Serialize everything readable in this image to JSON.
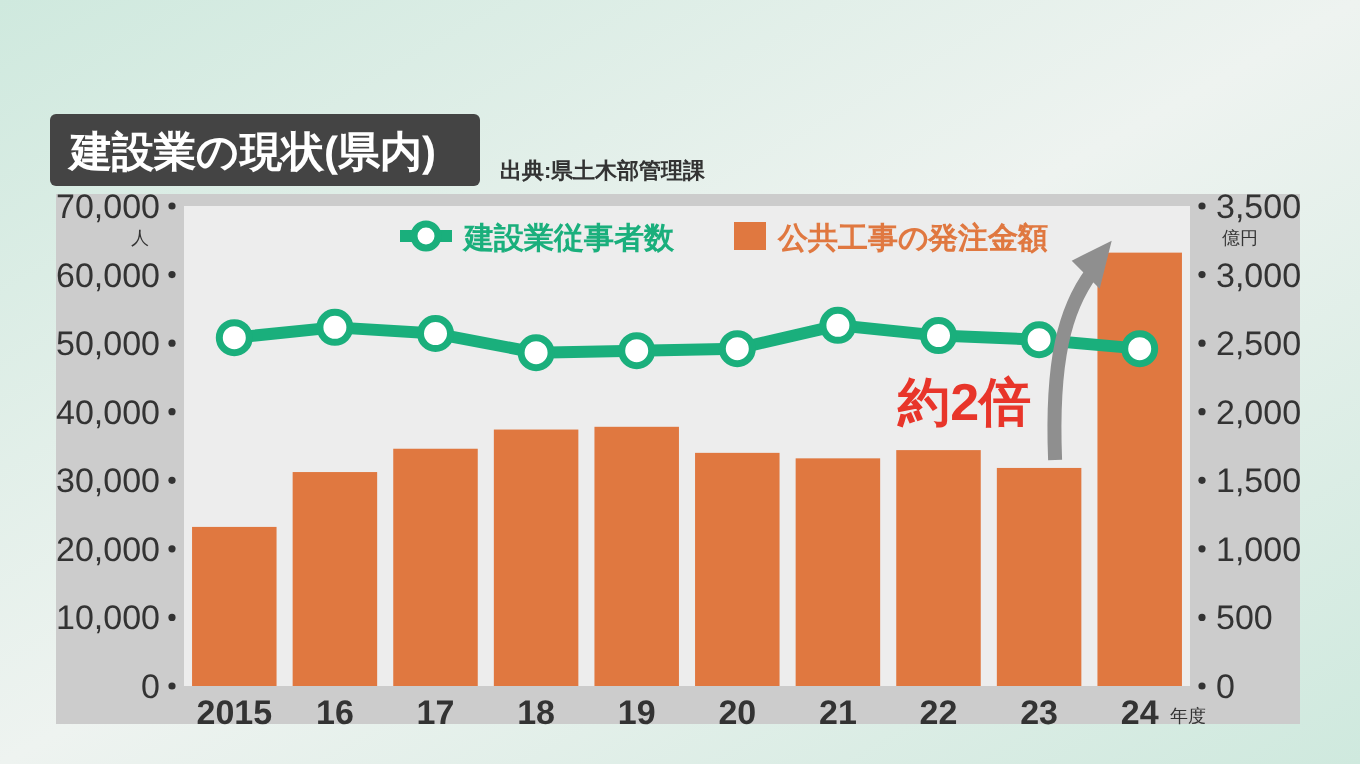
{
  "chart_data": {
    "type": "bar",
    "title": "建設業の現状(県内)",
    "xlabel": "年度",
    "ylabel": "人",
    "y2label": "億円",
    "categories": [
      "2015",
      "16",
      "17",
      "18",
      "19",
      "20",
      "21",
      "22",
      "23",
      "24"
    ],
    "series": [
      {
        "type": "line",
        "name": "建設業従事者数",
        "color": "#1aaf7c",
        "axis": "y",
        "marker": "circle",
        "values": [
          50800,
          52300,
          51400,
          48600,
          48900,
          49200,
          52600,
          51100,
          50500,
          49200
        ]
      },
      {
        "name": "公共工事の発注金額",
        "color": "#e07840",
        "axis": "y2",
        "values": [
          1160,
          1560,
          1730,
          1870,
          1890,
          1700,
          1660,
          1720,
          1590,
          3160
        ]
      }
    ],
    "ylim": [
      0,
      70000
    ],
    "yticks": [
      {
        "value": 0,
        "label": "0"
      },
      {
        "value": 10000,
        "label": "10,000"
      },
      {
        "value": 20000,
        "label": "20,000"
      },
      {
        "value": 30000,
        "label": "30,000"
      },
      {
        "value": 40000,
        "label": "40,000"
      },
      {
        "value": 50000,
        "label": "50,000"
      },
      {
        "value": 60000,
        "label": "60,000"
      },
      {
        "value": 70000,
        "label": "70,000"
      }
    ],
    "y2lim": [
      0,
      3500
    ],
    "y2ticks": [
      {
        "value": 0,
        "label": "0"
      },
      {
        "value": 500,
        "label": "500"
      },
      {
        "value": 1000,
        "label": "1,000"
      },
      {
        "value": 1500,
        "label": "1,500"
      },
      {
        "value": 2000,
        "label": "2,000"
      },
      {
        "value": 2500,
        "label": "2,500"
      },
      {
        "value": 3000,
        "label": "3,000"
      },
      {
        "value": 3500,
        "label": "3,500"
      }
    ],
    "legend": "top",
    "grid": false,
    "annotations": [
      "出典:県土木部管理課",
      "約2倍"
    ]
  }
}
